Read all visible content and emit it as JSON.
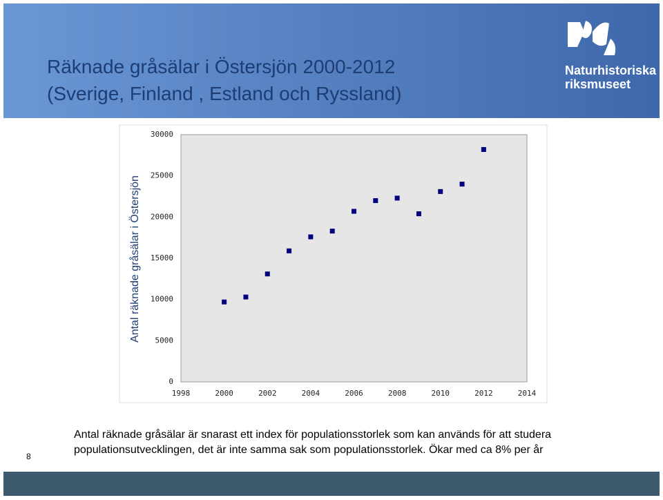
{
  "slide": {
    "title": [
      "Räknade gråsälar i Östersjön 2000-2012",
      "(Sverige, Finland , Estland  och Ryssland)"
    ],
    "logo": [
      "Naturhistoriska",
      "riksmuseet"
    ],
    "page_number": 8,
    "caption": [
      "Antal räknade gråsälar är snarast ett index för populationsstorlek som kan används för att studera",
      "populationsutvecklingen, det är inte samma sak som populationsstorlek. Ökar med ca 8% per år"
    ]
  },
  "chart_data": {
    "type": "scatter",
    "y_label": "Antal räknade gråsälar i Östersjön",
    "x": [
      2000,
      2001,
      2002,
      2003,
      2004,
      2005,
      2006,
      2007,
      2008,
      2009,
      2010,
      2011,
      2012
    ],
    "values": [
      9700,
      10300,
      13100,
      15900,
      17600,
      18300,
      20700,
      22000,
      22300,
      20400,
      23100,
      24000,
      28200
    ],
    "color": "#000080",
    "xlim": [
      1998,
      2014
    ],
    "xticks": [
      1998,
      2000,
      2002,
      2004,
      2006,
      2008,
      2010,
      2012,
      2014
    ],
    "ylim": [
      0,
      30000
    ],
    "yticks": [
      0,
      5000,
      10000,
      15000,
      20000,
      25000,
      30000
    ],
    "grid": false
  }
}
